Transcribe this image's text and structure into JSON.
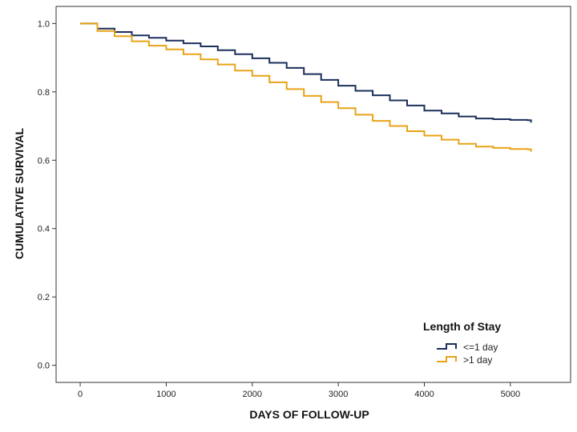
{
  "chart_data": {
    "type": "line",
    "title": "",
    "xlabel": "DAYS OF FOLLOW-UP",
    "ylabel": "CUMULATIVE SURVIVAL",
    "xlim": [
      -280,
      5700
    ],
    "ylim": [
      -0.05,
      1.05
    ],
    "xticks": [
      0,
      1000,
      2000,
      3000,
      4000,
      5000
    ],
    "yticks": [
      0.0,
      0.2,
      0.4,
      0.6,
      0.8,
      1.0
    ],
    "ytick_labels": [
      "0.0",
      "0.2",
      "0.4",
      "0.6",
      "0.8",
      "1.0"
    ],
    "grid": false,
    "legend": {
      "title": "Length of Stay",
      "placement": "bottom-right"
    },
    "series": [
      {
        "name": "<=1 day",
        "color": "#1b2f5a",
        "x": [
          0,
          200,
          400,
          600,
          800,
          1000,
          1200,
          1400,
          1600,
          1800,
          2000,
          2200,
          2400,
          2600,
          2800,
          3000,
          3200,
          3400,
          3600,
          3800,
          4000,
          4200,
          4400,
          4600,
          4800,
          5000,
          5200,
          5240
        ],
        "y": [
          1.0,
          0.985,
          0.975,
          0.965,
          0.958,
          0.95,
          0.942,
          0.933,
          0.922,
          0.91,
          0.898,
          0.885,
          0.87,
          0.852,
          0.835,
          0.818,
          0.803,
          0.79,
          0.775,
          0.76,
          0.745,
          0.737,
          0.728,
          0.722,
          0.72,
          0.718,
          0.717,
          0.71
        ]
      },
      {
        "name": ">1 day",
        "color": "#e8a317",
        "x": [
          0,
          200,
          400,
          600,
          800,
          1000,
          1200,
          1400,
          1600,
          1800,
          2000,
          2200,
          2400,
          2600,
          2800,
          3000,
          3200,
          3400,
          3600,
          3800,
          4000,
          4200,
          4400,
          4600,
          4800,
          5000,
          5200,
          5240
        ],
        "y": [
          1.0,
          0.978,
          0.963,
          0.948,
          0.935,
          0.924,
          0.91,
          0.895,
          0.88,
          0.862,
          0.847,
          0.828,
          0.808,
          0.788,
          0.77,
          0.752,
          0.733,
          0.715,
          0.7,
          0.685,
          0.672,
          0.66,
          0.648,
          0.64,
          0.636,
          0.633,
          0.632,
          0.625
        ]
      }
    ]
  }
}
